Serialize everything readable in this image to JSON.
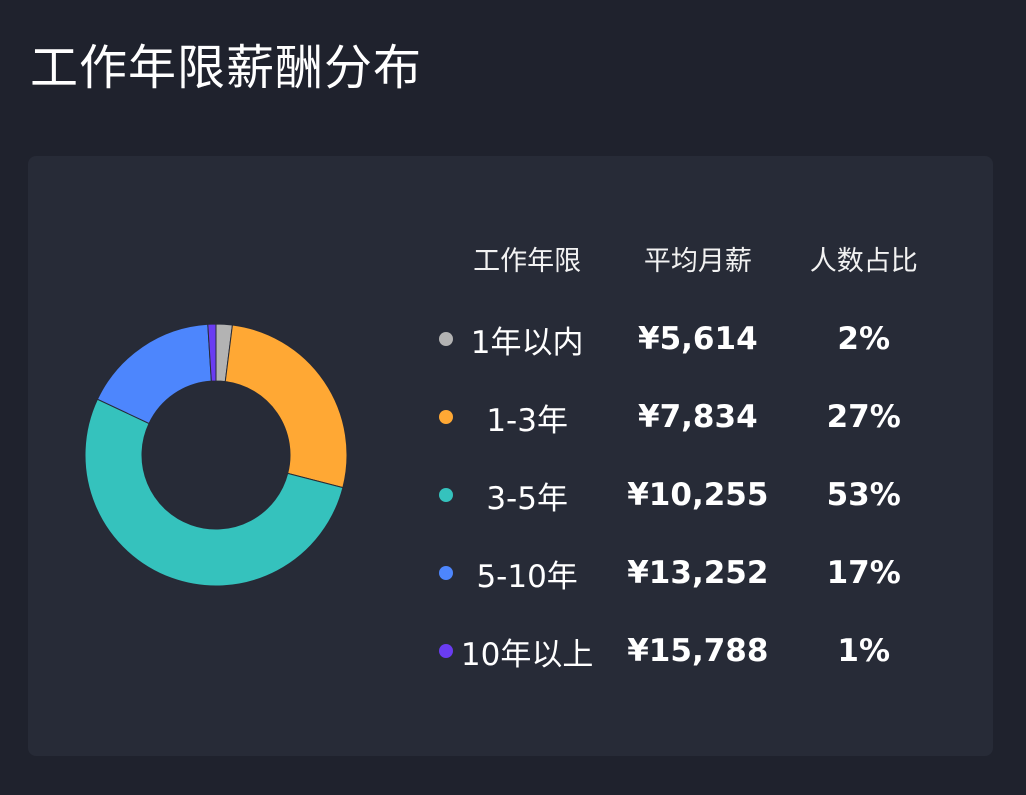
{
  "page": {
    "title": "工作年限薪酬分布"
  },
  "table": {
    "headers": {
      "period": "工作年限",
      "salary": "平均月薪",
      "share": "人数占比"
    },
    "rows": [
      {
        "period": "1年以内",
        "salary": "¥5,614",
        "share": "2%",
        "color": "#b3b3b3"
      },
      {
        "period": "1-3年",
        "salary": "¥7,834",
        "share": "27%",
        "color": "#ffa834"
      },
      {
        "period": "3-5年",
        "salary": "¥10,255",
        "share": "53%",
        "color": "#35c2bd"
      },
      {
        "period": "5-10年",
        "salary": "¥13,252",
        "share": "17%",
        "color": "#4d86fd"
      },
      {
        "period": "10年以上",
        "salary": "¥15,788",
        "share": "1%",
        "color": "#6a3cf2"
      }
    ]
  },
  "chart_data": {
    "type": "pie",
    "style": "donut",
    "categories": [
      "1年以内",
      "1-3年",
      "3-5年",
      "5-10年",
      "10年以上"
    ],
    "values": [
      2,
      27,
      53,
      17,
      1
    ],
    "colors": [
      "#b3b3b3",
      "#ffa834",
      "#35c2bd",
      "#4d86fd",
      "#6a3cf2"
    ]
  }
}
